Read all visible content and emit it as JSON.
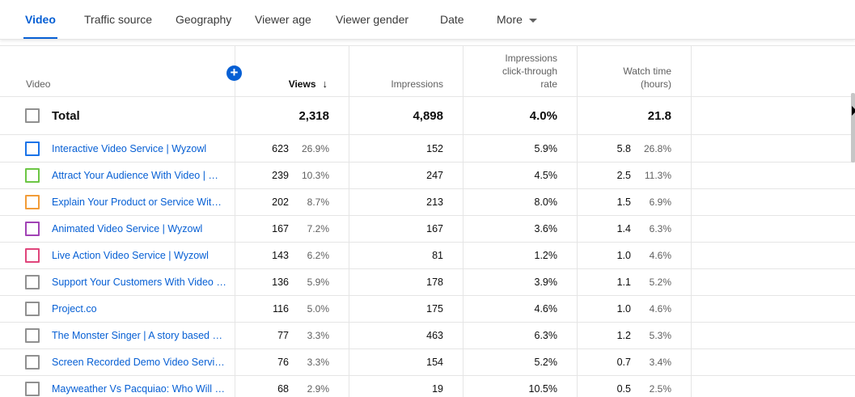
{
  "tabs": [
    {
      "label": "Video",
      "active": true
    },
    {
      "label": "Traffic source"
    },
    {
      "label": "Geography"
    },
    {
      "label": "Viewer age"
    },
    {
      "label": "Viewer gender"
    },
    {
      "label": "Date"
    },
    {
      "label": "More"
    }
  ],
  "table": {
    "headers": {
      "video": "Video",
      "views": "Views",
      "impressions": "Impressions",
      "ctr_line1": "Impressions",
      "ctr_line2": "click-through",
      "ctr_line3": "rate",
      "watch_line1": "Watch time",
      "watch_line2": "(hours)"
    },
    "sort_arrow": "↓",
    "add_icon": "+",
    "total": {
      "label": "Total",
      "views": "2,318",
      "impressions": "4,898",
      "ctr": "4.0%",
      "watch": "21.8"
    },
    "rows": [
      {
        "title": "Interactive Video Service | Wyzowl",
        "checkbox_color": "#1a73e8",
        "views": "623",
        "views_pct": "26.9%",
        "impressions": "152",
        "ctr": "5.9%",
        "watch": "5.8",
        "watch_pct": "26.8%"
      },
      {
        "title": "Attract Your Audience With Video | Wyzowl",
        "checkbox_color": "#6cc644",
        "views": "239",
        "views_pct": "10.3%",
        "impressions": "247",
        "ctr": "4.5%",
        "watch": "2.5",
        "watch_pct": "11.3%"
      },
      {
        "title": "Explain Your Product or Service With Video",
        "checkbox_color": "#f29c38",
        "views": "202",
        "views_pct": "8.7%",
        "impressions": "213",
        "ctr": "8.0%",
        "watch": "1.5",
        "watch_pct": "6.9%"
      },
      {
        "title": "Animated Video Service | Wyzowl",
        "checkbox_color": "#a142b5",
        "views": "167",
        "views_pct": "7.2%",
        "impressions": "167",
        "ctr": "3.6%",
        "watch": "1.4",
        "watch_pct": "6.3%"
      },
      {
        "title": "Live Action Video Service | Wyzowl",
        "checkbox_color": "#e0457b",
        "views": "143",
        "views_pct": "6.2%",
        "impressions": "81",
        "ctr": "1.2%",
        "watch": "1.0",
        "watch_pct": "4.6%"
      },
      {
        "title": "Support Your Customers With Video | Wyzowl",
        "checkbox_color": "#909090",
        "views": "136",
        "views_pct": "5.9%",
        "impressions": "178",
        "ctr": "3.9%",
        "watch": "1.1",
        "watch_pct": "5.2%"
      },
      {
        "title": "Project.co",
        "checkbox_color": "#909090",
        "views": "116",
        "views_pct": "5.0%",
        "impressions": "175",
        "ctr": "4.6%",
        "watch": "1.0",
        "watch_pct": "4.6%"
      },
      {
        "title": "The Monster Singer | A story based on a true story",
        "checkbox_color": "#909090",
        "views": "77",
        "views_pct": "3.3%",
        "impressions": "463",
        "ctr": "6.3%",
        "watch": "1.2",
        "watch_pct": "5.3%"
      },
      {
        "title": "Screen Recorded Demo Video Service | Wyzowl",
        "checkbox_color": "#909090",
        "views": "76",
        "views_pct": "3.3%",
        "impressions": "154",
        "ctr": "5.2%",
        "watch": "0.7",
        "watch_pct": "3.4%"
      },
      {
        "title": "Mayweather Vs Pacquiao: Who Will Win?",
        "checkbox_color": "#909090",
        "views": "68",
        "views_pct": "2.9%",
        "impressions": "19",
        "ctr": "10.5%",
        "watch": "0.5",
        "watch_pct": "2.5%"
      }
    ]
  }
}
